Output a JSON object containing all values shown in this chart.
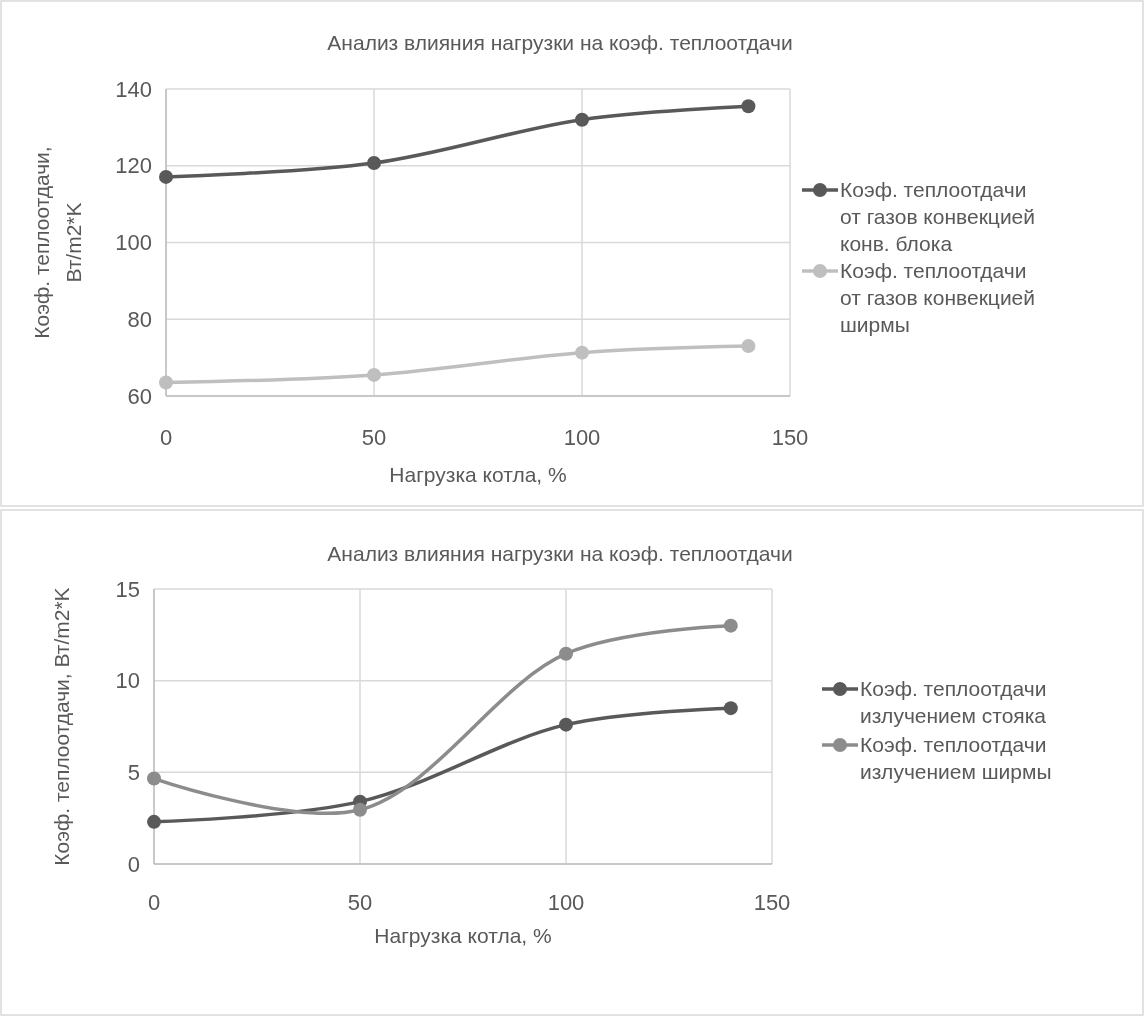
{
  "chart_data": [
    {
      "type": "line",
      "title": "Анализ влияния нагрузки на коэф. теплоотдачи",
      "xlabel": "Нагрузка котла, %",
      "ylabel": "Коэф. теплоотдачи, Вт/m2*K",
      "x": [
        0,
        50,
        100,
        140
      ],
      "xlim": [
        0,
        150
      ],
      "xticks": [
        0,
        50,
        100,
        150
      ],
      "ylim": [
        60,
        140
      ],
      "yticks": [
        60,
        80,
        100,
        120,
        140
      ],
      "grid": true,
      "legend": "right",
      "marker": "circle",
      "line_style": "solid",
      "series": [
        {
          "name": "Коэф. теплоотдачи от газов конвекцией конв. блока",
          "color": "#595959",
          "values": [
            117.1,
            120.7,
            132,
            135.5
          ]
        },
        {
          "name": "Коэф. теплоотдачи от газов конвекцией ширмы",
          "color": "#bfbfbf",
          "values": [
            63.5,
            65.5,
            71.3,
            73
          ]
        }
      ]
    },
    {
      "type": "line",
      "title": "Анализ влияния нагрузки на коэф. теплоотдачи",
      "xlabel": "Нагрузка котла, %",
      "ylabel": "Коэф. теплоотдачи, Вт/m2*K",
      "x": [
        0,
        50,
        100,
        140
      ],
      "xlim": [
        0,
        150
      ],
      "xticks": [
        0,
        50,
        100,
        150
      ],
      "ylim": [
        0,
        15
      ],
      "yticks": [
        0,
        5,
        10,
        15
      ],
      "grid": true,
      "legend": "right",
      "marker": "circle",
      "line_style": "solid",
      "series": [
        {
          "name": "Коэф. теплоотдачи излучением стояка",
          "color": "#595959",
          "values": [
            2.3,
            3.4,
            7.6,
            8.5
          ]
        },
        {
          "name": "Коэф. теплоотдачи излучением ширмы",
          "color": "#8c8c8c",
          "values": [
            4.66,
            2.96,
            11.47,
            13.0
          ]
        }
      ]
    }
  ]
}
